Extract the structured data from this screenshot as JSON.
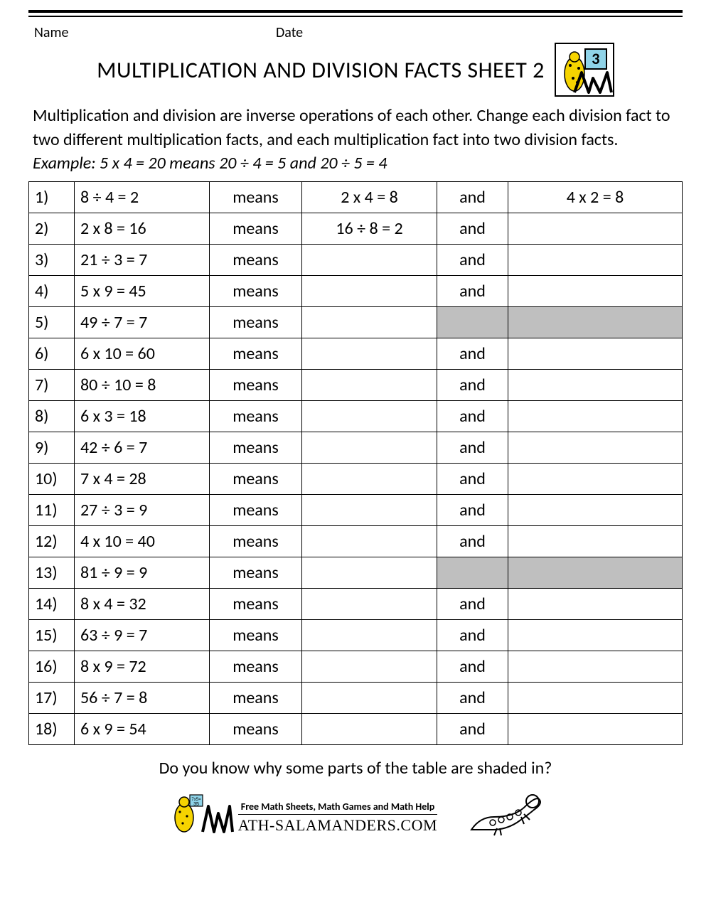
{
  "header": {
    "name_label": "Name",
    "date_label": "Date",
    "title": "MULTIPLICATION AND DIVISION FACTS SHEET 2",
    "logo_number": "3"
  },
  "intro": {
    "line1": "Multiplication and division are inverse operations of each other. Change each division fact to two different multiplication facts, and each multiplication fact into two division facts. ",
    "example": "Example: 5 x 4 = 20 means 20 ÷ 4 = 5 and 20 ÷ 5 = 4"
  },
  "table": {
    "means_label": "means",
    "and_label": "and",
    "shaded_color": "#bfbfbf",
    "border_color": "#000000",
    "font_size": 24,
    "rows": [
      {
        "n": "1)",
        "fact": "8 ÷ 4 = 2",
        "ans1": "2 x 4 = 8",
        "and": "and",
        "ans2": "4 x 2 = 8",
        "shaded": false
      },
      {
        "n": "2)",
        "fact": "2 x 8 = 16",
        "ans1": "16 ÷ 8 = 2",
        "and": "and",
        "ans2": "",
        "shaded": false
      },
      {
        "n": "3)",
        "fact": "21 ÷ 3 = 7",
        "ans1": "",
        "and": "and",
        "ans2": "",
        "shaded": false
      },
      {
        "n": "4)",
        "fact": "5 x 9 = 45",
        "ans1": "",
        "and": "and",
        "ans2": "",
        "shaded": false
      },
      {
        "n": "5)",
        "fact": "49 ÷ 7 = 7",
        "ans1": "",
        "and": "",
        "ans2": "",
        "shaded": true
      },
      {
        "n": "6)",
        "fact": "6 x 10 = 60",
        "ans1": "",
        "and": "and",
        "ans2": "",
        "shaded": false
      },
      {
        "n": "7)",
        "fact": "80 ÷ 10 = 8",
        "ans1": "",
        "and": "and",
        "ans2": "",
        "shaded": false
      },
      {
        "n": "8)",
        "fact": "6 x 3 = 18",
        "ans1": "",
        "and": "and",
        "ans2": "",
        "shaded": false
      },
      {
        "n": "9)",
        "fact": "42 ÷ 6 = 7",
        "ans1": "",
        "and": "and",
        "ans2": "",
        "shaded": false
      },
      {
        "n": "10)",
        "fact": "7 x 4 = 28",
        "ans1": "",
        "and": "and",
        "ans2": "",
        "shaded": false
      },
      {
        "n": "11)",
        "fact": "27 ÷ 3 = 9",
        "ans1": "",
        "and": "and",
        "ans2": "",
        "shaded": false
      },
      {
        "n": "12)",
        "fact": "4 x 10 = 40",
        "ans1": "",
        "and": "and",
        "ans2": "",
        "shaded": false
      },
      {
        "n": "13)",
        "fact": "81 ÷ 9 = 9",
        "ans1": "",
        "and": "",
        "ans2": "",
        "shaded": true
      },
      {
        "n": "14)",
        "fact": "8 x 4 = 32",
        "ans1": "",
        "and": "and",
        "ans2": "",
        "shaded": false
      },
      {
        "n": "15)",
        "fact": "63 ÷ 9 = 7",
        "ans1": "",
        "and": "and",
        "ans2": "",
        "shaded": false
      },
      {
        "n": "16)",
        "fact": "8 x 9 = 72",
        "ans1": "",
        "and": "and",
        "ans2": "",
        "shaded": false
      },
      {
        "n": "17)",
        "fact": "56 ÷ 7 = 8",
        "ans1": "",
        "and": "and",
        "ans2": "",
        "shaded": false
      },
      {
        "n": "18)",
        "fact": "6 x 9 = 54",
        "ans1": "",
        "and": "and",
        "ans2": "",
        "shaded": false
      }
    ]
  },
  "footer": {
    "question": "Do you know why some parts of the table are shaded in?",
    "tagline": "Free Math Sheets, Math Games and Math Help",
    "brand": "ATH-SALAMANDERS.COM"
  },
  "colors": {
    "text": "#000000",
    "background": "#ffffff",
    "shaded": "#bfbfbf",
    "logo_box_bg": "#8fd3e8",
    "salamander": "#f6d400"
  }
}
